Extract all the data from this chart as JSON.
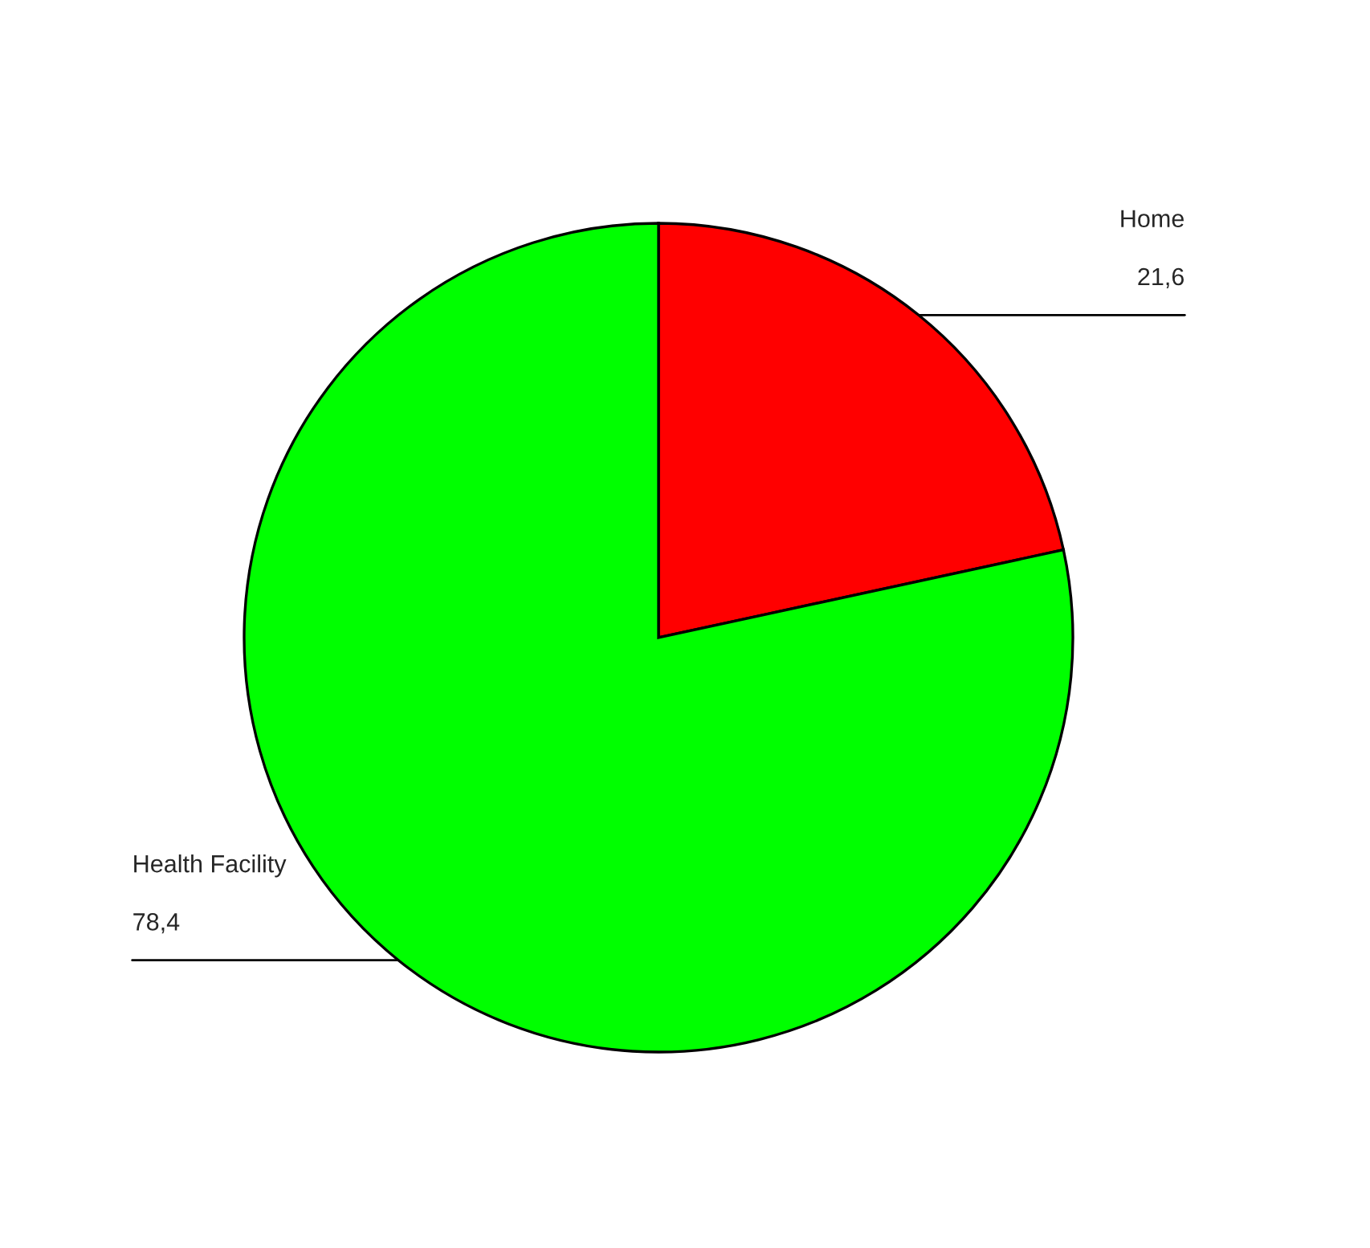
{
  "chart_data": {
    "type": "pie",
    "categories": [
      "Home",
      "Health Facility"
    ],
    "values": [
      21.6,
      78.4
    ],
    "value_labels": [
      "21,6",
      "78,4"
    ],
    "colors": [
      "#ff0000",
      "#00ff00"
    ]
  }
}
